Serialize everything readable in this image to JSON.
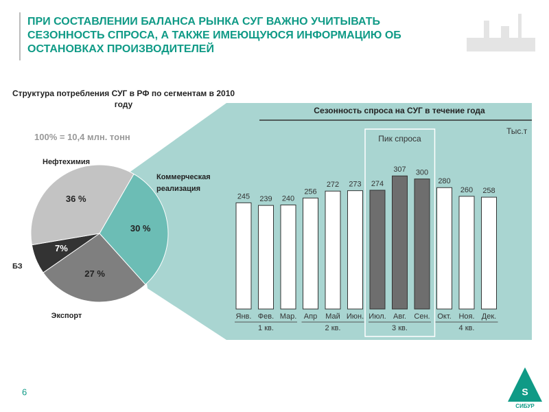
{
  "title": "ПРИ СОСТАВЛЕНИИ БАЛАНСА РЫНКА СУГ ВАЖНО УЧИТЫВАТЬ СЕЗОННОСТЬ СПРОСА, А ТАКЖЕ ИМЕЮЩУЮСЯ ИНФОРМАЦИЮ ОБ ОСТАНОВКАХ ПРОИЗВОДИТЕЛЕЙ",
  "page_number": "6",
  "logo": "СИБУР",
  "chart_data": [
    {
      "type": "pie",
      "title": "Структура потребления СУГ в РФ по сегментам в 2010 году",
      "subtitle": "100% = 10,4  млн. тонн",
      "categories": [
        "Коммерческая реализация",
        "Экспорт",
        "БЗ",
        "Нефтехимия"
      ],
      "values": [
        30,
        27,
        7,
        36
      ],
      "value_labels": [
        "30 %",
        "27 %",
        "7%",
        "36 %"
      ],
      "colors": [
        "#6cbdb5",
        "#7f7f7f",
        "#333333",
        "#c3c3c3"
      ]
    },
    {
      "type": "bar",
      "title": "Сезонность спроса на СУГ в течение года",
      "unit": "Тыс.т",
      "annotation": "Пик спроса",
      "categories": [
        "Янв.",
        "Фев.",
        "Мар.",
        "Апр",
        "Май",
        "Июн.",
        "Июл.",
        "Авг.",
        "Сен.",
        "Окт.",
        "Ноя.",
        "Дек."
      ],
      "groups": [
        "1 кв.",
        "2 кв.",
        "3 кв.",
        "4 кв."
      ],
      "values": [
        245,
        239,
        240,
        256,
        272,
        273,
        274,
        307,
        300,
        280,
        260,
        258
      ],
      "colors": [
        "#ffffff",
        "#ffffff",
        "#ffffff",
        "#ffffff",
        "#ffffff",
        "#ffffff",
        "#6e6e6e",
        "#6e6e6e",
        "#6e6e6e",
        "#ffffff",
        "#ffffff",
        "#ffffff"
      ],
      "ylim": [
        0,
        320
      ]
    }
  ]
}
